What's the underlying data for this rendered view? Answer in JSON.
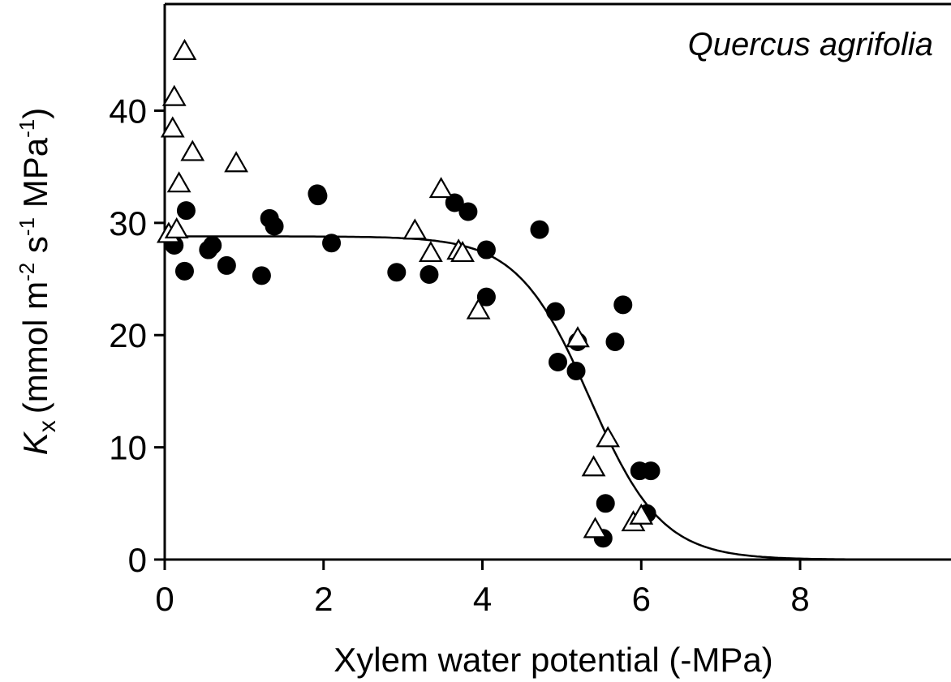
{
  "chart_data": {
    "type": "scatter",
    "title": "",
    "annotation": "Quercus agrifolia",
    "xlabel": "Xylem water potential (-MPa)",
    "ylabel": {
      "symbol": "K",
      "subscript": "x",
      "units_text": "(mmol m",
      "exp1": "-2",
      "mid": " s",
      "exp2": "-1",
      "tail": " MPa",
      "exp3": "-1",
      "close": ")"
    },
    "xlim": [
      0,
      9.9
    ],
    "ylim": [
      0,
      49.5
    ],
    "x_ticks": [
      0,
      2,
      4,
      6,
      8
    ],
    "y_ticks": [
      0,
      10,
      20,
      30,
      40
    ],
    "x_tick_labels": [
      "0",
      "2",
      "4",
      "6",
      "8"
    ],
    "y_tick_labels": [
      "0",
      "10",
      "20",
      "30",
      "40"
    ],
    "grid": false,
    "legend": "none",
    "series": [
      {
        "marker": "filled-circle",
        "points": [
          [
            0.12,
            28.0
          ],
          [
            0.25,
            25.7
          ],
          [
            0.27,
            31.1
          ],
          [
            0.55,
            27.6
          ],
          [
            0.6,
            28.0
          ],
          [
            0.78,
            26.2
          ],
          [
            1.22,
            25.3
          ],
          [
            1.32,
            30.4
          ],
          [
            1.38,
            29.7
          ],
          [
            1.92,
            32.6
          ],
          [
            1.93,
            32.4
          ],
          [
            2.1,
            28.2
          ],
          [
            2.92,
            25.6
          ],
          [
            3.33,
            25.4
          ],
          [
            3.65,
            31.8
          ],
          [
            3.82,
            31.0
          ],
          [
            4.05,
            27.6
          ],
          [
            4.05,
            23.4
          ],
          [
            4.72,
            29.4
          ],
          [
            4.92,
            22.1
          ],
          [
            4.95,
            17.6
          ],
          [
            5.18,
            16.8
          ],
          [
            5.2,
            19.4
          ],
          [
            5.52,
            1.9
          ],
          [
            5.55,
            5.0
          ],
          [
            5.67,
            19.4
          ],
          [
            5.77,
            22.7
          ],
          [
            5.98,
            7.9
          ],
          [
            6.07,
            4.1
          ],
          [
            6.12,
            7.9
          ]
        ]
      },
      {
        "marker": "open-triangle",
        "points": [
          [
            0.05,
            29.0
          ],
          [
            0.1,
            38.4
          ],
          [
            0.12,
            41.2
          ],
          [
            0.15,
            29.4
          ],
          [
            0.18,
            33.5
          ],
          [
            0.25,
            45.3
          ],
          [
            0.35,
            36.3
          ],
          [
            0.9,
            35.3
          ],
          [
            3.15,
            29.3
          ],
          [
            3.35,
            27.3
          ],
          [
            3.48,
            33.0
          ],
          [
            3.7,
            27.5
          ],
          [
            3.75,
            27.3
          ],
          [
            3.95,
            22.2
          ],
          [
            5.2,
            19.7
          ],
          [
            5.4,
            8.2
          ],
          [
            5.42,
            2.7
          ],
          [
            5.58,
            10.8
          ],
          [
            5.9,
            3.3
          ],
          [
            6.0,
            3.9
          ]
        ]
      }
    ],
    "fit_curve": {
      "model": "sigmoid",
      "kmax": 28.8,
      "p50": 5.35,
      "slope": 2.2,
      "x_range": [
        0,
        9.9
      ]
    }
  }
}
